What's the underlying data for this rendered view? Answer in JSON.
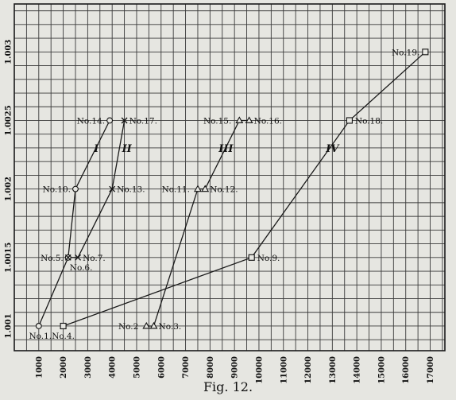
{
  "chart_data": {
    "type": "line",
    "title": "",
    "caption": "Fig. 12.",
    "xlabel": "",
    "ylabel": "",
    "xlim": [
      0,
      17600
    ],
    "ylim": [
      1.00082,
      1.00335
    ],
    "x_ticks": [
      1000,
      2000,
      3000,
      4000,
      5000,
      6000,
      7000,
      8000,
      9000,
      10000,
      11000,
      12000,
      13000,
      14000,
      15000,
      16000,
      17000
    ],
    "x_tick_labels": [
      "1000",
      "2000",
      "3000",
      "4000",
      "5000",
      "6000",
      "7000",
      "8000",
      "9000",
      "10000",
      "11000",
      "12000",
      "13000",
      "14000",
      "15000",
      "16000",
      "17000"
    ],
    "y_ticks": [
      1.001,
      1.0015,
      1.002,
      1.0025,
      1.003
    ],
    "y_tick_labels": [
      "1.001",
      "1.0015",
      "1.002",
      "1.0025",
      "1.003"
    ],
    "grid": true,
    "series": [
      {
        "name": "I",
        "marker": "circle",
        "points": [
          {
            "x": 1000,
            "y": 1.001,
            "label": "No.1."
          },
          {
            "x": 2200,
            "y": 1.0015,
            "label": "No.5."
          },
          {
            "x": 2500,
            "y": 1.002,
            "label": "No.10."
          },
          {
            "x": 3900,
            "y": 1.0025,
            "label": "No.14."
          }
        ]
      },
      {
        "name": "II",
        "marker": "x",
        "points": [
          {
            "x": 2200,
            "y": 1.0015,
            "label": "No.6."
          },
          {
            "x": 2600,
            "y": 1.0015,
            "label": "No.7."
          },
          {
            "x": 4000,
            "y": 1.002,
            "label": "No.13."
          },
          {
            "x": 4500,
            "y": 1.0025,
            "label": "No.17."
          }
        ]
      },
      {
        "name": "III",
        "marker": "triangle",
        "points": [
          {
            "x": 5400,
            "y": 1.001,
            "label": "No.2"
          },
          {
            "x": 5700,
            "y": 1.001,
            "label": "No.3."
          },
          {
            "x": 7500,
            "y": 1.002,
            "label": "No.11."
          },
          {
            "x": 7800,
            "y": 1.002,
            "label": "No.12."
          },
          {
            "x": 9200,
            "y": 1.0025,
            "label": "No.15."
          },
          {
            "x": 9600,
            "y": 1.0025,
            "label": "No.16."
          }
        ]
      },
      {
        "name": "IV",
        "marker": "square",
        "points": [
          {
            "x": 2000,
            "y": 1.001,
            "label": "No.4."
          },
          {
            "x": 9700,
            "y": 1.0015,
            "label": "No.9."
          },
          {
            "x": 13700,
            "y": 1.0025,
            "label": "No.18."
          },
          {
            "x": 16800,
            "y": 1.003,
            "label": "No.19."
          }
        ]
      }
    ]
  }
}
